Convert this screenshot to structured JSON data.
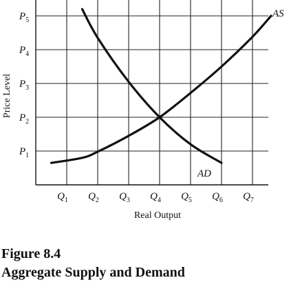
{
  "chart_data": {
    "type": "line",
    "xlabel": "Real Output",
    "ylabel": "Price Level",
    "x_ticks": [
      {
        "base": "Q",
        "sub": "1"
      },
      {
        "base": "Q",
        "sub": "2"
      },
      {
        "base": "Q",
        "sub": "3"
      },
      {
        "base": "Q",
        "sub": "4"
      },
      {
        "base": "Q",
        "sub": "5"
      },
      {
        "base": "Q",
        "sub": "6"
      },
      {
        "base": "Q",
        "sub": "7"
      }
    ],
    "y_ticks": [
      {
        "base": "P",
        "sub": "1"
      },
      {
        "base": "P",
        "sub": "2"
      },
      {
        "base": "P",
        "sub": "3"
      },
      {
        "base": "P",
        "sub": "4"
      },
      {
        "base": "P",
        "sub": "5"
      }
    ],
    "xlim": [
      0,
      8
    ],
    "ylim": [
      0,
      5.5
    ],
    "grid": true,
    "series": [
      {
        "name": "AS",
        "x": [
          0.5,
          1.5,
          2,
          3,
          4,
          5,
          6,
          7,
          7.6
        ],
        "y": [
          0.65,
          0.8,
          0.98,
          1.45,
          2,
          2.72,
          3.5,
          4.38,
          5.0
        ]
      },
      {
        "name": "AD",
        "x": [
          1.5,
          2,
          3,
          4,
          5,
          6
        ],
        "y": [
          5.2,
          4.35,
          3.05,
          2.0,
          1.2,
          0.65
        ]
      }
    ]
  },
  "caption": {
    "figure_number": "Figure 8.4",
    "figure_title": "Aggregate Supply and Demand"
  }
}
